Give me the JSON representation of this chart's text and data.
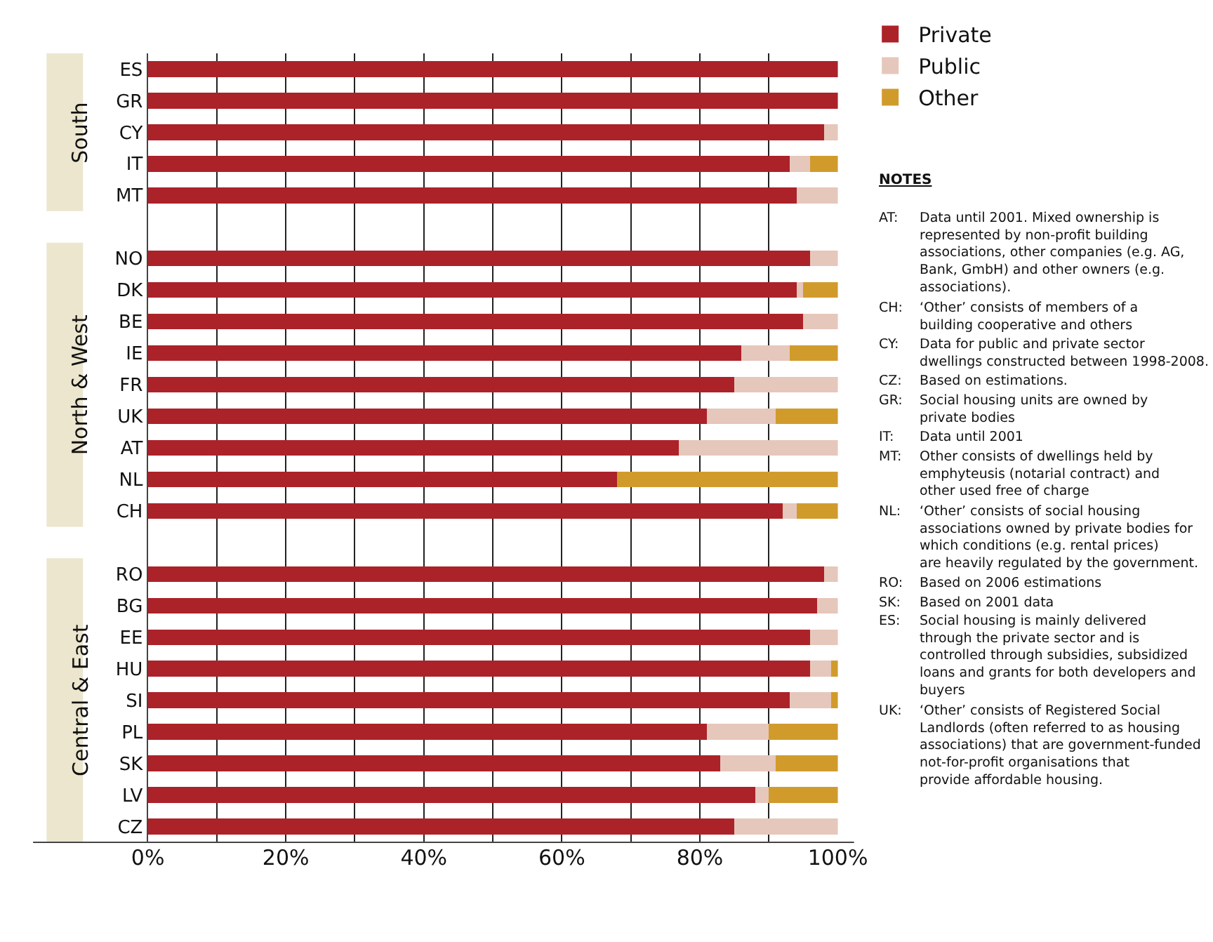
{
  "chart_data": {
    "type": "bar",
    "orientation": "horizontal",
    "stacked": true,
    "categories": [
      "ES",
      "GR",
      "CY",
      "IT",
      "MT",
      null,
      "NO",
      "DK",
      "BE",
      "IE",
      "FR",
      "UK",
      "AT",
      "NL",
      "CH",
      null,
      "RO",
      "BG",
      "EE",
      "HU",
      "SI",
      "PL",
      "SK",
      "LV",
      "CZ"
    ],
    "series": [
      {
        "name": "Private",
        "color": "#ac2229",
        "values": [
          100,
          100,
          98,
          93,
          94,
          null,
          96,
          94,
          95,
          86,
          85,
          81,
          77,
          68,
          92,
          null,
          98,
          97,
          96,
          96,
          93,
          81,
          83,
          88,
          85
        ]
      },
      {
        "name": "Public",
        "color": "#e6c7bb",
        "values": [
          0,
          0,
          2,
          3,
          6,
          null,
          4,
          1,
          5,
          7,
          15,
          10,
          23,
          0,
          2,
          null,
          2,
          3,
          4,
          3,
          6,
          9,
          8,
          2,
          15
        ]
      },
      {
        "name": "Other",
        "color": "#d19b2c",
        "values": [
          0,
          0,
          0,
          4,
          0,
          null,
          0,
          5,
          0,
          7,
          0,
          9,
          0,
          32,
          6,
          null,
          0,
          0,
          0,
          1,
          1,
          10,
          9,
          10,
          0
        ]
      }
    ],
    "xlim": [
      0,
      100
    ],
    "xticks": [
      {
        "value": 0,
        "label": "0%"
      },
      {
        "value": 10,
        "label": null
      },
      {
        "value": 20,
        "label": "20%"
      },
      {
        "value": 30,
        "label": null
      },
      {
        "value": 40,
        "label": "40%"
      },
      {
        "value": 50,
        "label": null
      },
      {
        "value": 60,
        "label": "60%"
      },
      {
        "value": 70,
        "label": null
      },
      {
        "value": 80,
        "label": "80%"
      },
      {
        "value": 90,
        "label": null
      },
      {
        "value": 100,
        "label": "100%"
      }
    ],
    "grid": "x",
    "legend": "top right",
    "annotations": [
      "South",
      "North & West",
      "Central & East",
      "NOTES",
      "AT: Data until 2001. Mixed ownership is represented by non-profit building associations, other companies (e.g. AG, Bank, GmbH) and other owners (e.g. associations).",
      "CH: ‘Other’ consists of members of a building cooperative and others",
      "CY: Data for public and private sector dwellings constructed between 1998-2008.",
      "CZ: Based on estimations.",
      "GR: Social housing units are owned by private bodies",
      "IT: Data until 2001",
      "MT: Other consists of dwellings held by emphyteusis (notarial contract) and other used free of charge",
      "NL: ‘Other’ consists of social housing associations owned by private bodies for which conditions (e.g. rental prices) are heavily regulated by the government.",
      "RO: Based on 2006 estimations",
      "SK: Based on 2001 data",
      "ES: Social housing is mainly delivered through the private sector and is controlled through subsidies, subsidized loans and grants for both developers and buyers",
      "UK: ‘Other’ consists of Registered Social Landlords (often referred to as housing associations) that are government-funded not-for-profit organisations that provide affordable housing."
    ]
  }
}
